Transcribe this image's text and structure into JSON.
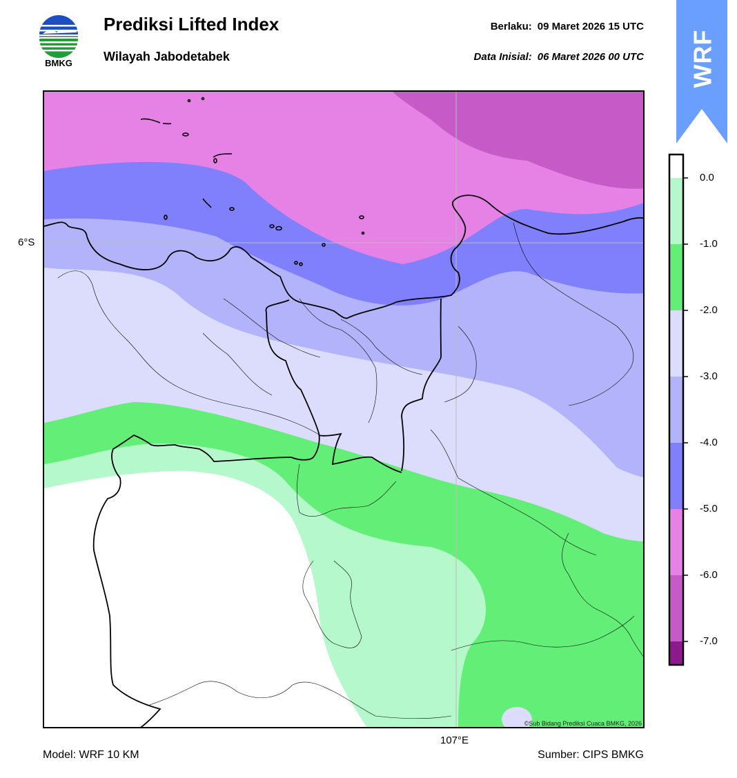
{
  "header": {
    "logo_text": "BMKG",
    "title": "Prediksi Lifted Index",
    "subtitle": "Wilayah Jabodetabek",
    "valid_label": "Berlaku:",
    "valid_value": "09 Maret 2026 15 UTC",
    "init_label": "Data Inisial:",
    "init_value": "06 Maret 2026 00 UTC",
    "badge": "WRF"
  },
  "map": {
    "lat_label": "6°S",
    "lon_label": "107°E",
    "credit": "©Sub Bidang Prediksi Cuaca BMKG, 2026"
  },
  "footer": {
    "model": "Model: WRF 10 KM",
    "source": "Sumber: CIPS BMKG"
  },
  "colorbar": {
    "ticks": [
      "0.0",
      "-1.0",
      "-2.0",
      "-3.0",
      "-4.0",
      "-5.0",
      "-6.0",
      "-7.0"
    ],
    "colors": [
      "#ffffff",
      "#b4f8cb",
      "#63ef77",
      "#dcdcfc",
      "#b3b3fc",
      "#8080fc",
      "#e682e6",
      "#c65ac6",
      "#8c1a8c"
    ]
  },
  "colors": {
    "badge": "#6a9eff",
    "boundary": "#000000"
  }
}
